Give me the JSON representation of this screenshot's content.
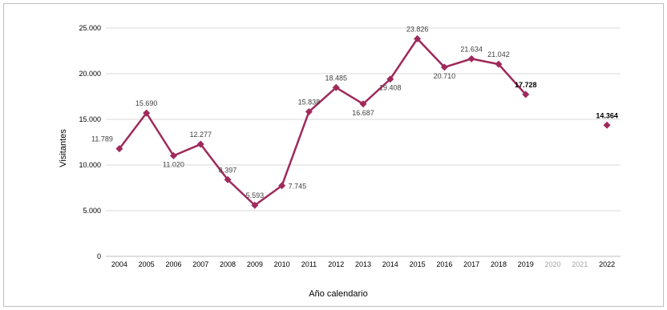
{
  "chart_data": {
    "type": "line",
    "xlabel": "Año calendario",
    "ylabel": "Visitantes",
    "ylim": [
      0,
      25000
    ],
    "yticks": [
      0,
      5000,
      10000,
      15000,
      20000,
      25000
    ],
    "ytick_labels": [
      "0",
      "5.000",
      "10.000",
      "15.000",
      "20.000",
      "25.000"
    ],
    "grid": "horizontal",
    "line_color": "#9e2a5b",
    "categories": [
      "2004",
      "2005",
      "2006",
      "2007",
      "2008",
      "2009",
      "2010",
      "2011",
      "2012",
      "2013",
      "2014",
      "2015",
      "2016",
      "2017",
      "2018",
      "2019",
      "2020",
      "2021",
      "2022"
    ],
    "muted_categories": [
      "2020",
      "2021"
    ],
    "values": [
      11789,
      15690,
      11020,
      12277,
      8397,
      5593,
      7745,
      15838,
      18485,
      16687,
      19408,
      23826,
      20710,
      21634,
      21042,
      17728,
      null,
      null,
      14364
    ],
    "value_labels": [
      "11.789",
      "15.690",
      "11.020",
      "12.277",
      "8.397",
      "5.593",
      "7.745",
      "15.838",
      "18.485",
      "16.687",
      "19.408",
      "23.826",
      "20.710",
      "21.634",
      "21.042",
      "17.728",
      "",
      "",
      "14.364"
    ],
    "bold_labels": [
      "2019",
      "2022"
    ]
  }
}
